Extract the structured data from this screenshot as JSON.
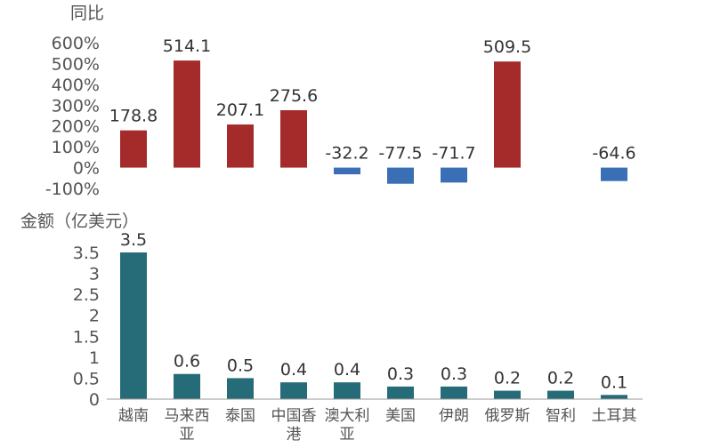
{
  "chart_data": [
    {
      "type": "bar",
      "ylabel": "同比",
      "categories": [
        "越南",
        "马来西亚",
        "泰国",
        "中国香港",
        "澳大利亚",
        "美国",
        "伊朗",
        "俄罗斯",
        "智利",
        "土耳其"
      ],
      "values": [
        178.8,
        514.1,
        207.1,
        275.6,
        -32.2,
        -77.5,
        -71.7,
        509.5,
        null,
        -64.6
      ],
      "data_labels": [
        "178.8",
        "514.1",
        "207.1",
        "275.6",
        "-32.2",
        "-77.5",
        "-71.7",
        "509.5",
        "",
        "-64.6"
      ],
      "ylim": [
        -100,
        600
      ],
      "yticks": [
        -100,
        0,
        100,
        200,
        300,
        400,
        500,
        600
      ],
      "ytick_labels": [
        "-100%",
        "0%",
        "100%",
        "200%",
        "300%",
        "400%",
        "500%",
        "600%"
      ],
      "colors": {
        "positive": "#a52a2a",
        "negative": "#3a6fb5"
      },
      "grid": false
    },
    {
      "type": "bar",
      "ylabel": "金额（亿美元）",
      "categories": [
        "越南",
        "马来西亚",
        "泰国",
        "中国香港",
        "澳大利亚",
        "美国",
        "伊朗",
        "俄罗斯",
        "智利",
        "土耳其"
      ],
      "category_lines": [
        [
          "越南"
        ],
        [
          "马来西",
          "亚"
        ],
        [
          "泰国"
        ],
        [
          "中国香",
          "港"
        ],
        [
          "澳大利",
          "亚"
        ],
        [
          "美国"
        ],
        [
          "伊朗"
        ],
        [
          "俄罗斯"
        ],
        [
          "智利"
        ],
        [
          "土耳其"
        ]
      ],
      "values": [
        3.5,
        0.6,
        0.5,
        0.4,
        0.4,
        0.3,
        0.3,
        0.2,
        0.2,
        0.1
      ],
      "data_labels": [
        "3.5",
        "0.6",
        "0.5",
        "0.4",
        "0.4",
        "0.3",
        "0.3",
        "0.2",
        "0.2",
        "0.1"
      ],
      "ylim": [
        0,
        3.5
      ],
      "yticks": [
        0,
        0.5,
        1,
        1.5,
        2,
        2.5,
        3,
        3.5
      ],
      "ytick_labels": [
        "0",
        "0.5",
        "1",
        "1.5",
        "2",
        "2.5",
        "3",
        "3.5"
      ],
      "colors": {
        "bar": "#266b78"
      },
      "grid": false
    }
  ]
}
